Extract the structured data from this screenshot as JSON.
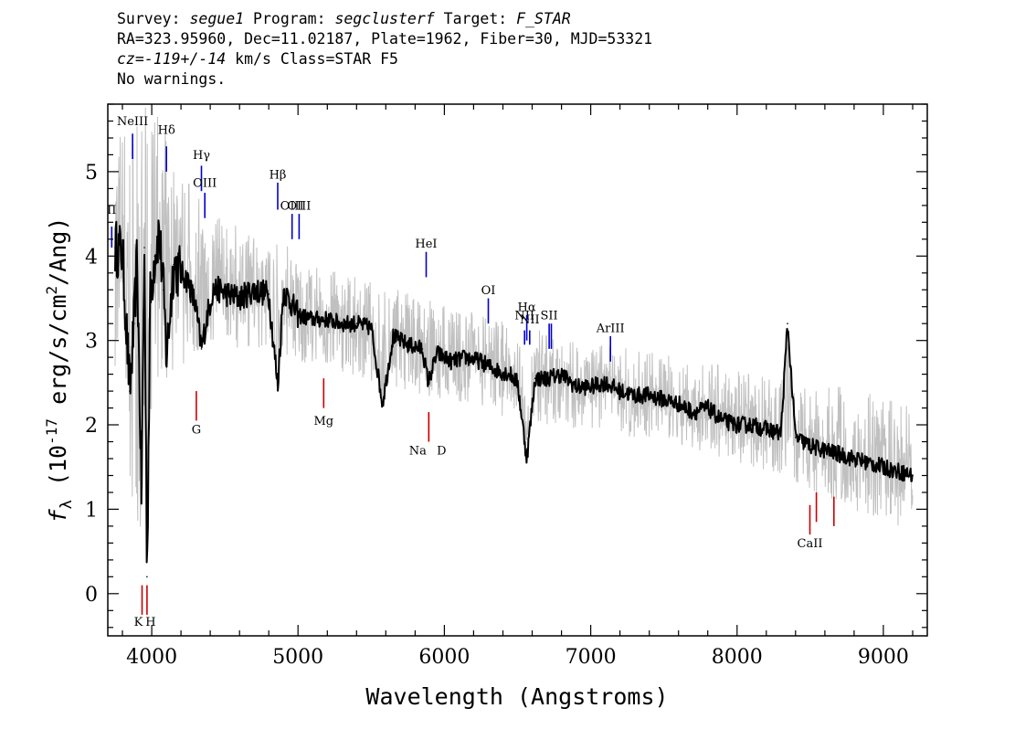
{
  "header": {
    "survey_label": "Survey: ",
    "survey": "segue1",
    "program_label": " Program: ",
    "program": "segclusterf",
    "target_label": " Target: ",
    "target": "F_STAR",
    "line2": "RA=323.95960, Dec=11.02187, Plate=1962, Fiber=30, MJD=53321",
    "cz_label": "cz=",
    "cz_value": "-119+/-14",
    "cz_rest": " km/s Class=STAR F5",
    "line4": "No warnings."
  },
  "chart_data": {
    "type": "line",
    "xlabel": "Wavelength (Angstroms)",
    "ylabel_parts": [
      "f",
      "λ",
      " (10",
      "-17",
      " erg/s/cm",
      "2",
      "/Ang)"
    ],
    "xlim": [
      3700,
      9300
    ],
    "ylim": [
      -0.5,
      5.8
    ],
    "xticks": [
      4000,
      5000,
      6000,
      7000,
      8000,
      9000
    ],
    "yticks": [
      0,
      1,
      2,
      3,
      4,
      5
    ],
    "x_minor_step": 200,
    "y_minor_step": 0.2,
    "series": [
      {
        "role": "flux",
        "color": "#000000",
        "x": [
          3750,
          3800,
          3850,
          3880,
          3900,
          3930,
          3950,
          3968,
          3990,
          4020,
          4050,
          4080,
          4101,
          4150,
          4200,
          4250,
          4300,
          4340,
          4380,
          4420,
          4470,
          4520,
          4600,
          4700,
          4800,
          4861,
          4900,
          5000,
          5100,
          5200,
          5300,
          5400,
          5500,
          5577,
          5650,
          5750,
          5850,
          5890,
          5950,
          6050,
          6150,
          6250,
          6350,
          6450,
          6500,
          6563,
          6620,
          6700,
          6800,
          6900,
          7000,
          7100,
          7200,
          7300,
          7400,
          7500,
          7600,
          7700,
          7800,
          7900,
          8000,
          8100,
          8200,
          8300,
          8345,
          8400,
          8500,
          8600,
          8700,
          8800,
          8900,
          9000,
          9100,
          9200
        ],
        "y": [
          4.1,
          4.05,
          2.4,
          3.2,
          4.0,
          1.2,
          4.1,
          0.2,
          3.5,
          4.0,
          4.3,
          3.6,
          2.8,
          3.9,
          3.8,
          3.7,
          3.4,
          2.9,
          3.3,
          3.6,
          3.6,
          3.55,
          3.5,
          3.6,
          3.55,
          2.45,
          3.6,
          3.3,
          3.25,
          3.25,
          3.2,
          3.2,
          3.15,
          2.25,
          3.05,
          2.95,
          2.9,
          2.5,
          2.85,
          2.75,
          2.8,
          2.75,
          2.65,
          2.6,
          2.5,
          1.6,
          2.55,
          2.55,
          2.6,
          2.45,
          2.45,
          2.5,
          2.4,
          2.35,
          2.35,
          2.3,
          2.25,
          2.15,
          2.2,
          2.05,
          2.0,
          2.0,
          1.95,
          1.9,
          3.2,
          1.85,
          1.75,
          1.7,
          1.65,
          1.6,
          1.55,
          1.5,
          1.45,
          1.4
        ]
      },
      {
        "role": "error band",
        "color": "#c0c0c0",
        "x": [
          3750,
          3850,
          3950,
          4050,
          4150,
          4300,
          4500,
          4700,
          4900,
          5100,
          5300,
          5500,
          5700,
          5900,
          6100,
          6300,
          6500,
          6700,
          6900,
          7100,
          7300,
          7500,
          7700,
          7900,
          8100,
          8300,
          8500,
          8700,
          8900,
          9100,
          9200
        ],
        "upper": [
          5.6,
          5.7,
          5.8,
          5.7,
          5.2,
          4.8,
          4.4,
          4.3,
          4.2,
          3.9,
          3.8,
          3.7,
          3.6,
          3.5,
          3.4,
          3.3,
          3.2,
          3.1,
          3.0,
          2.95,
          2.9,
          2.85,
          2.8,
          2.7,
          2.6,
          2.55,
          2.5,
          2.45,
          2.4,
          2.3,
          2.2
        ],
        "lower": [
          2.5,
          1.0,
          0.5,
          2.5,
          2.5,
          2.8,
          2.9,
          2.9,
          2.8,
          2.7,
          2.6,
          2.5,
          2.4,
          2.3,
          2.2,
          2.1,
          2.1,
          2.0,
          1.95,
          1.9,
          1.85,
          1.8,
          1.7,
          1.6,
          1.5,
          1.4,
          1.2,
          1.1,
          0.9,
          0.8,
          0.8
        ]
      }
    ],
    "emission_lines": [
      {
        "label": "II",
        "x": 3727,
        "y_top": 4.35,
        "y_bottom": 4.1,
        "label_y": 4.5
      },
      {
        "label": "NeIII",
        "x": 3869,
        "y_top": 5.45,
        "y_bottom": 5.15,
        "label_y": 5.55
      },
      {
        "label": "Hδ",
        "x": 4101,
        "y_top": 5.3,
        "y_bottom": 5.0,
        "label_y": 5.45
      },
      {
        "label": "Hγ",
        "x": 4340,
        "y_top": 5.07,
        "y_bottom": 4.77,
        "label_y": 5.15
      },
      {
        "label": "OIII",
        "x": 4363,
        "y_top": 4.75,
        "y_bottom": 4.45,
        "label_y": 4.82
      },
      {
        "label": "Hβ",
        "x": 4861,
        "y_top": 4.87,
        "y_bottom": 4.55,
        "label_y": 4.92
      },
      {
        "label": "OIII",
        "x": 4959,
        "y_top": 4.5,
        "y_bottom": 4.2,
        "label_y": 4.55
      },
      {
        "label": "OIII",
        "x": 5007,
        "y_top": 4.5,
        "y_bottom": 4.2,
        "label_y": 4.55
      },
      {
        "label": "HeI",
        "x": 5876,
        "y_top": 4.05,
        "y_bottom": 3.75,
        "label_y": 4.1
      },
      {
        "label": "OI",
        "x": 6300,
        "y_top": 3.5,
        "y_bottom": 3.2,
        "label_y": 3.55
      },
      {
        "label": "NII",
        "x": 6548,
        "y_top": 3.12,
        "y_bottom": 2.95,
        "label_y": 3.25
      },
      {
        "label": "Hα",
        "x": 6563,
        "y_top": 3.3,
        "y_bottom": 3.0,
        "label_y": 3.35
      },
      {
        "label": "NII",
        "x": 6583,
        "y_top": 3.12,
        "y_bottom": 2.95,
        "label_y": 3.2
      },
      {
        "label": "SII",
        "x": 6716,
        "y_top": 3.2,
        "y_bottom": 2.9,
        "label_y": 3.25
      },
      {
        "label": "SII",
        "x": 6731,
        "y_top": 3.2,
        "y_bottom": 2.9,
        "label_y": null
      },
      {
        "label": "ArIII",
        "x": 7135,
        "y_top": 3.05,
        "y_bottom": 2.75,
        "label_y": 3.1
      }
    ],
    "absorption_lines": [
      {
        "label": "K",
        "x": 3934,
        "y_top": 0.1,
        "y_bottom": -0.25,
        "label_y": -0.38
      },
      {
        "label": "H",
        "x": 3968,
        "y_top": 0.1,
        "y_bottom": -0.25,
        "label_y": -0.38
      },
      {
        "label": "G",
        "x": 4305,
        "y_top": 2.4,
        "y_bottom": 2.05,
        "label_y": 1.9
      },
      {
        "label": "Mg",
        "x": 5175,
        "y_top": 2.55,
        "y_bottom": 2.2,
        "label_y": 2.0
      },
      {
        "label": "Na",
        "x": 5893,
        "y_top": 2.15,
        "y_bottom": 1.8,
        "label_y": 1.65
      },
      {
        "label": "D",
        "x": 5893,
        "y_top": 2.15,
        "y_bottom": 1.8,
        "label_y": 1.65
      },
      {
        "label": "CaII",
        "x": 8498,
        "y_top": 1.05,
        "y_bottom": 0.7,
        "label_y": 0.55
      },
      {
        "label": "CaII",
        "x": 8542,
        "y_top": 1.2,
        "y_bottom": 0.85,
        "label_y": null
      },
      {
        "label": "CaII",
        "x": 8662,
        "y_top": 1.15,
        "y_bottom": 0.8,
        "label_y": null
      }
    ],
    "colors": {
      "emission": "#0000cc",
      "absorption": "#cc0000",
      "error": "#c0c0c0",
      "flux": "#000000"
    }
  }
}
